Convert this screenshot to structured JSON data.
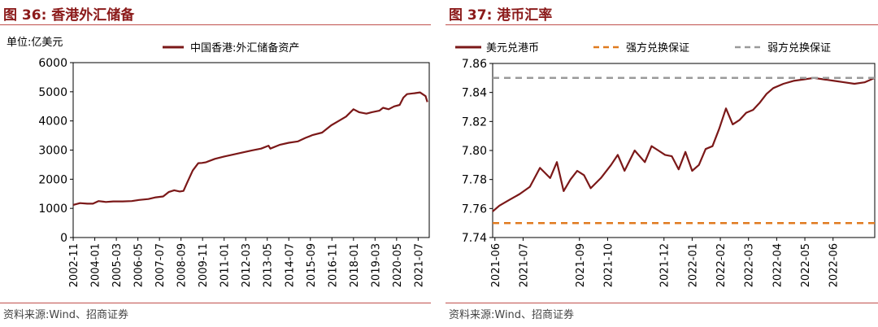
{
  "panels": [
    {
      "figure_title": "图 36:  香港外汇储备",
      "source": "资料来源:Wind、招商证券",
      "line_color": "#7b1818"
    },
    {
      "figure_title": "图 37:  港币汇率",
      "source": "资料来源:Wind、招商证券",
      "line_color": "#7b1818",
      "strong_color": "#e07a1f",
      "weak_color": "#9a9a9a"
    }
  ],
  "chart_data": [
    {
      "type": "line",
      "unit_label": "单位:亿美元",
      "title": "",
      "xlabel": "",
      "ylabel": "",
      "ylim": [
        0,
        6000
      ],
      "yticks": [
        0,
        1000,
        2000,
        3000,
        4000,
        5000,
        6000
      ],
      "xlim": [
        2002.83,
        2022.1
      ],
      "xticks": [
        "2002-11",
        "2004-01",
        "2005-03",
        "2006-05",
        "2007-07",
        "2008-09",
        "2009-11",
        "2011-01",
        "2012-03",
        "2013-05",
        "2014-07",
        "2015-09",
        "2016-11",
        "2018-01",
        "2019-03",
        "2020-05",
        "2021-07"
      ],
      "legend": "top",
      "series": [
        {
          "name": "中国香港:外汇储备资产",
          "x": [
            2002.83,
            2003.2,
            2003.6,
            2003.9,
            2004.2,
            2004.6,
            2005.0,
            2005.5,
            2006.0,
            2006.4,
            2006.9,
            2007.3,
            2007.7,
            2008.0,
            2008.3,
            2008.6,
            2008.8,
            2009.0,
            2009.3,
            2009.6,
            2009.8,
            2010.0,
            2010.5,
            2011.0,
            2011.5,
            2012.0,
            2012.5,
            2013.0,
            2013.4,
            2013.5,
            2014.0,
            2014.5,
            2015.0,
            2015.4,
            2015.8,
            2016.3,
            2016.8,
            2017.2,
            2017.6,
            2018.0,
            2018.3,
            2018.7,
            2019.0,
            2019.4,
            2019.6,
            2019.9,
            2020.2,
            2020.5,
            2020.7,
            2020.9,
            2021.3,
            2021.6,
            2021.9,
            2022.0
          ],
          "y": [
            1120,
            1180,
            1160,
            1160,
            1250,
            1220,
            1240,
            1240,
            1250,
            1290,
            1320,
            1380,
            1410,
            1560,
            1620,
            1580,
            1600,
            1880,
            2300,
            2550,
            2560,
            2580,
            2700,
            2780,
            2850,
            2920,
            2990,
            3050,
            3150,
            3050,
            3180,
            3250,
            3300,
            3420,
            3520,
            3600,
            3850,
            4000,
            4150,
            4400,
            4300,
            4250,
            4300,
            4350,
            4450,
            4400,
            4500,
            4550,
            4800,
            4920,
            4950,
            4980,
            4850,
            4650
          ]
        }
      ]
    },
    {
      "type": "line",
      "title": "",
      "xlabel": "",
      "ylabel": "",
      "ylim": [
        7.74,
        7.86
      ],
      "yticks": [
        7.74,
        7.76,
        7.78,
        7.8,
        7.82,
        7.84,
        7.86
      ],
      "xlim": [
        2021.41,
        2022.54
      ],
      "xticks": [
        "2021-06",
        "2021-07",
        "2021-09",
        "2021-10",
        "2021-12",
        "2022-01",
        "2022-02",
        "2022-03",
        "2022-04",
        "2022-05",
        "2022-06"
      ],
      "legend": "top",
      "series": [
        {
          "name": "美元兑港币",
          "x": [
            2021.41,
            2021.43,
            2021.46,
            2021.49,
            2021.52,
            2021.55,
            2021.58,
            2021.6,
            2021.62,
            2021.64,
            2021.66,
            2021.68,
            2021.7,
            2021.73,
            2021.76,
            2021.78,
            2021.8,
            2021.83,
            2021.86,
            2021.88,
            2021.9,
            2021.92,
            2021.94,
            2021.96,
            2021.98,
            2022.0,
            2022.02,
            2022.04,
            2022.06,
            2022.08,
            2022.1,
            2022.12,
            2022.14,
            2022.16,
            2022.18,
            2022.2,
            2022.22,
            2022.24,
            2022.27,
            2022.3,
            2022.33,
            2022.36,
            2022.39,
            2022.42,
            2022.45,
            2022.48,
            2022.51,
            2022.54
          ],
          "y": [
            7.758,
            7.762,
            7.766,
            7.77,
            7.775,
            7.788,
            7.781,
            7.792,
            7.772,
            7.78,
            7.786,
            7.783,
            7.774,
            7.781,
            7.79,
            7.797,
            7.786,
            7.8,
            7.792,
            7.803,
            7.8,
            7.797,
            7.796,
            7.787,
            7.799,
            7.786,
            7.79,
            7.801,
            7.803,
            7.815,
            7.829,
            7.818,
            7.821,
            7.826,
            7.828,
            7.833,
            7.839,
            7.843,
            7.846,
            7.848,
            7.849,
            7.85,
            7.849,
            7.848,
            7.847,
            7.846,
            7.847,
            7.85
          ]
        },
        {
          "name": "强方兑换保证",
          "x": [
            2021.41,
            2022.54
          ],
          "y": [
            7.75,
            7.75
          ],
          "style": "dashed"
        },
        {
          "name": "弱方兑换保证",
          "x": [
            2021.41,
            2022.54
          ],
          "y": [
            7.85,
            7.85
          ],
          "style": "dashed"
        }
      ]
    }
  ]
}
